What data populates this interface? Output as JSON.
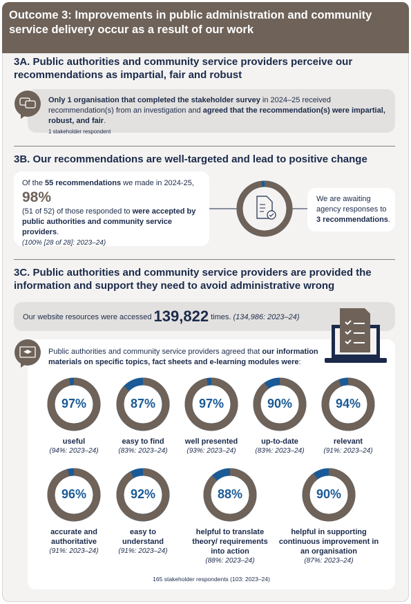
{
  "header": {
    "title": "Outcome 3: Improvements in public administration and community service delivery occur as a result of our work"
  },
  "section_3a": {
    "title": "3A. Public authorities and community service providers perceive our recommendations as impartial, fair and robust",
    "text": [
      "Only 1 organisation that completed the stakeholder survey",
      " in 2024–25 received recommendation(s) from an investigation and ",
      "agreed that the recommendation(s) were impartial, robust, and fair",
      "."
    ],
    "note": "1 stakeholder respondent"
  },
  "section_3b": {
    "title": "3B. Our recommendations are well-targeted and lead to positive change",
    "intro": [
      "Of the ",
      "55 recommendations",
      " we made in 2024-25,"
    ],
    "percent": {
      "value": 98,
      "label": "98%"
    },
    "detail": [
      "(51 of 52) of those responded to ",
      "were accepted by public authorities and community service providers",
      "."
    ],
    "comparison": "(100% [28 of 28]: 2023–24)",
    "awaiting": [
      "We are awaiting agency responses to ",
      "3 recommendations",
      "."
    ]
  },
  "section_3c": {
    "title": "3C. Public authorities and community service providers are provided the information and support they need to avoid administrative wrong",
    "website": [
      "Our website resources were accessed ",
      "139,822",
      " times. "
    ],
    "website_comparison": "(134,986: 2023–24)",
    "intro": [
      "Public authorities and community service providers agreed that ",
      "our information materials on specific topics, fact sheets and e-learning modules were",
      ":"
    ],
    "ratings": [
      {
        "value": 97,
        "label": "97%",
        "name": "useful",
        "comparison": "(94%: 2023–24)"
      },
      {
        "value": 87,
        "label": "87%",
        "name": "easy to find",
        "comparison": "(83%: 2023–24)"
      },
      {
        "value": 97,
        "label": "97%",
        "name": "well presented",
        "comparison": "(93%: 2023–24)"
      },
      {
        "value": 90,
        "label": "90%",
        "name": "up-to-date",
        "comparison": "(83%: 2023–24)"
      },
      {
        "value": 94,
        "label": "94%",
        "name": "relevant",
        "comparison": "(91%: 2023–24)"
      },
      {
        "value": 96,
        "label": "96%",
        "name": "accurate and authoritative",
        "comparison": "(91%: 2023–24)"
      },
      {
        "value": 92,
        "label": "92%",
        "name": "easy to understand",
        "comparison": "(91%: 2023–24)"
      },
      {
        "value": 88,
        "label": "88%",
        "name": "helpful to translate theory/ requirements into action",
        "comparison": "(88%: 2023–24)"
      },
      {
        "value": 90,
        "label": "90%",
        "name": "helpful in supporting continuous improvement in an organisation",
        "comparison": "(87%: 2023–24)"
      }
    ],
    "footnote": "165 stakeholder respondents (103: 2023–24)"
  }
}
